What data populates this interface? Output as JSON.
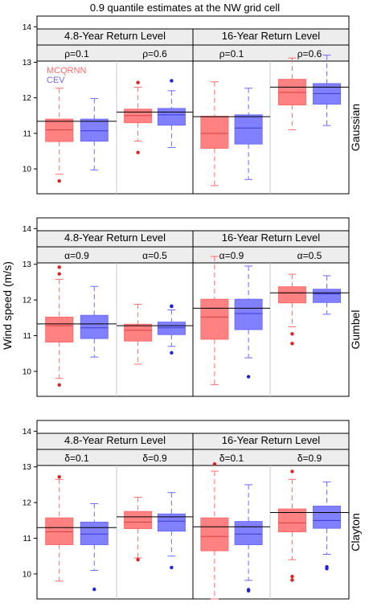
{
  "chart_data": {
    "type": "box",
    "title": "0.9 quantile estimates at the NW grid cell",
    "ylabel": "Wind speed (m/s)",
    "ylim": [
      9.3,
      14.3
    ],
    "yticks": [
      10,
      11,
      12,
      13,
      14
    ],
    "colors": {
      "MCQRNN": "#ff6b6b",
      "CEV": "#6b6bff"
    },
    "legend": [
      "MCQRNN",
      "CEV"
    ],
    "return_levels": [
      "4.8-Year Return Level",
      "16-Year Return Level"
    ],
    "rows": [
      {
        "name": "Gaussian",
        "params": [
          "ρ=0.1",
          "ρ=0.6",
          "ρ=0.1",
          "ρ=0.6"
        ],
        "true_lines": [
          11.34,
          11.6,
          11.47,
          12.3
        ],
        "boxes": [
          [
            {
              "series": "MCQRNN",
              "lw": 9.85,
              "q1": 10.77,
              "med": 11.1,
              "q3": 11.4,
              "uw": 12.27,
              "out": [
                9.66
              ]
            },
            {
              "series": "CEV",
              "lw": 9.97,
              "q1": 10.78,
              "med": 11.07,
              "q3": 11.4,
              "uw": 11.98,
              "out": []
            }
          ],
          [
            {
              "series": "MCQRNN",
              "lw": 10.78,
              "q1": 11.3,
              "med": 11.5,
              "q3": 11.68,
              "uw": 12.3,
              "out": [
                12.43,
                10.46
              ]
            },
            {
              "series": "CEV",
              "lw": 10.6,
              "q1": 11.23,
              "med": 11.52,
              "q3": 11.7,
              "uw": 12.2,
              "out": [
                12.48
              ]
            }
          ],
          [
            {
              "series": "MCQRNN",
              "lw": 9.53,
              "q1": 10.58,
              "med": 11.0,
              "q3": 11.48,
              "uw": 12.45,
              "out": []
            },
            {
              "series": "CEV",
              "lw": 9.7,
              "q1": 10.7,
              "med": 11.15,
              "q3": 11.52,
              "uw": 12.27,
              "out": []
            }
          ],
          [
            {
              "series": "MCQRNN",
              "lw": 11.1,
              "q1": 11.8,
              "med": 12.15,
              "q3": 12.52,
              "uw": 13.12,
              "out": []
            },
            {
              "series": "CEV",
              "lw": 11.22,
              "q1": 11.82,
              "med": 12.12,
              "q3": 12.4,
              "uw": 13.2,
              "out": []
            }
          ]
        ]
      },
      {
        "name": "Gumbel",
        "params": [
          "α=0.9",
          "α=0.5",
          "α=0.9",
          "α=0.5"
        ],
        "true_lines": [
          11.33,
          11.28,
          11.77,
          12.2
        ],
        "boxes": [
          [
            {
              "series": "MCQRNN",
              "lw": 9.8,
              "q1": 10.82,
              "med": 11.28,
              "q3": 11.52,
              "uw": 12.58,
              "out": [
                12.92,
                12.73,
                9.62
              ]
            },
            {
              "series": "CEV",
              "lw": 10.4,
              "q1": 10.92,
              "med": 11.22,
              "q3": 11.57,
              "uw": 12.38,
              "out": []
            }
          ],
          [
            {
              "series": "MCQRNN",
              "lw": 10.2,
              "q1": 10.85,
              "med": 11.15,
              "q3": 11.32,
              "uw": 11.88,
              "out": []
            },
            {
              "series": "CEV",
              "lw": 10.7,
              "q1": 11.03,
              "med": 11.22,
              "q3": 11.38,
              "uw": 11.72,
              "out": [
                11.83,
                11.82,
                10.52
              ]
            }
          ],
          [
            {
              "series": "MCQRNN",
              "lw": 9.63,
              "q1": 10.9,
              "med": 11.52,
              "q3": 12.02,
              "uw": 13.22,
              "out": []
            },
            {
              "series": "CEV",
              "lw": 10.38,
              "q1": 11.17,
              "med": 11.62,
              "q3": 12.02,
              "uw": 12.95,
              "out": [
                9.85
              ]
            }
          ],
          [
            {
              "series": "MCQRNN",
              "lw": 11.25,
              "q1": 11.92,
              "med": 12.2,
              "q3": 12.37,
              "uw": 12.72,
              "out": [
                11.05,
                10.78
              ]
            },
            {
              "series": "CEV",
              "lw": 11.6,
              "q1": 11.93,
              "med": 12.17,
              "q3": 12.3,
              "uw": 12.68,
              "out": []
            }
          ]
        ]
      },
      {
        "name": "Clayton",
        "params": [
          "δ=0.1",
          "δ=0.9",
          "δ=0.1",
          "δ=0.9"
        ],
        "true_lines": [
          11.3,
          11.6,
          11.32,
          11.72
        ],
        "boxes": [
          [
            {
              "series": "MCQRNN",
              "lw": 9.8,
              "q1": 10.82,
              "med": 11.18,
              "q3": 11.57,
              "uw": 12.65,
              "out": [
                12.72
              ]
            },
            {
              "series": "CEV",
              "lw": 10.1,
              "q1": 10.82,
              "med": 11.12,
              "q3": 11.45,
              "uw": 11.97,
              "out": [
                9.57
              ]
            }
          ],
          [
            {
              "series": "MCQRNN",
              "lw": 10.45,
              "q1": 11.27,
              "med": 11.45,
              "q3": 11.75,
              "uw": 12.15,
              "out": [
                10.4
              ]
            },
            {
              "series": "CEV",
              "lw": 10.5,
              "q1": 11.2,
              "med": 11.48,
              "q3": 11.68,
              "uw": 12.28,
              "out": [
                10.18
              ]
            }
          ],
          [
            {
              "series": "MCQRNN",
              "lw": 9.3,
              "q1": 10.65,
              "med": 11.05,
              "q3": 11.57,
              "uw": 12.88,
              "out": [
                13.08
              ]
            },
            {
              "series": "CEV",
              "lw": 9.82,
              "q1": 10.82,
              "med": 11.12,
              "q3": 11.47,
              "uw": 12.5,
              "out": [
                9.56,
                9.53
              ]
            }
          ],
          [
            {
              "series": "MCQRNN",
              "lw": 10.4,
              "q1": 11.18,
              "med": 11.43,
              "q3": 11.82,
              "uw": 12.65,
              "out": [
                12.87,
                9.93,
                9.83
              ]
            },
            {
              "series": "CEV",
              "lw": 10.55,
              "q1": 11.28,
              "med": 11.5,
              "q3": 11.9,
              "uw": 12.58,
              "out": [
                10.2,
                10.15
              ]
            }
          ]
        ]
      }
    ]
  }
}
